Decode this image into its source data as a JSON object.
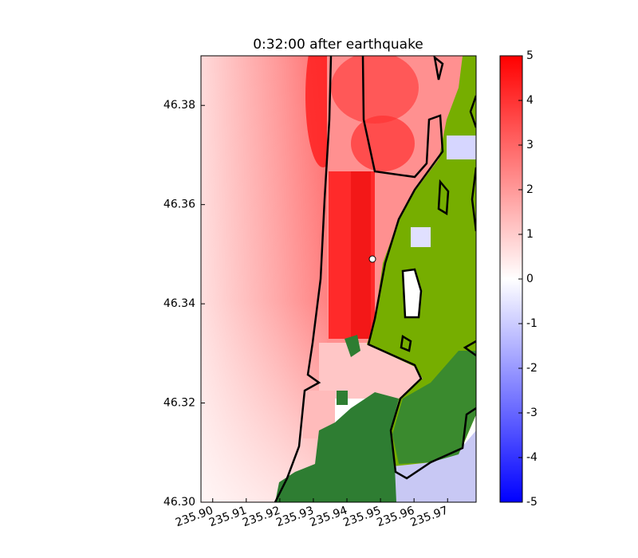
{
  "chart_data": {
    "type": "map",
    "title": "0:32:00 after earthquake",
    "xlim": [
      235.8965,
      235.9785
    ],
    "xticks": [
      {
        "value": 235.9,
        "label": "235.90"
      },
      235.91,
      235.92,
      235.93,
      235.94,
      235.95,
      235.96,
      235.97
    ],
    "ylim": [
      46.3,
      46.39
    ],
    "yticks": [
      {
        "value": 46.3,
        "label": "46.30"
      },
      {
        "value": 46.32,
        "label": "46.32"
      },
      46.34,
      46.36,
      46.38
    ],
    "colorbar": {
      "lim": [
        -5,
        5
      ],
      "ticks": [
        -5,
        -4,
        -3,
        -2,
        -1,
        0,
        1,
        2,
        3,
        4,
        5
      ],
      "colors": [
        "#0000ff",
        "#ffffff",
        "#ff0000"
      ]
    }
  }
}
